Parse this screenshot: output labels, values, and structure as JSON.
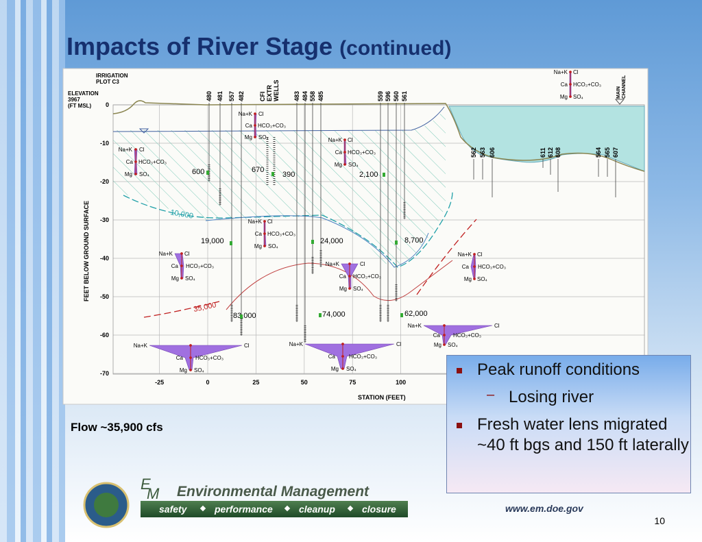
{
  "title": "Impacts of River Stage",
  "subtitle": "(continued)",
  "diagram": {
    "plot_label": [
      "IRRIGATION",
      "PLOT C3"
    ],
    "elevation_label": [
      "ELEVATION",
      "3967",
      "(FT MSL)"
    ],
    "y_axis_label": "FEET BELOW GROUND SURFACE",
    "x_axis_label": "STATION (FEET)",
    "channel_label": [
      "MAIN",
      "CHANNEL"
    ],
    "cfi_label": [
      "CFI",
      "EXTR",
      "WELLS"
    ],
    "yticks": [
      0,
      -10,
      -20,
      -30,
      -40,
      -50,
      -60,
      -70
    ],
    "xticks": [
      -25,
      0,
      25,
      50,
      75,
      100
    ],
    "wells": [
      "480",
      "481",
      "557",
      "482",
      "483",
      "484",
      "558",
      "485",
      "559",
      "596",
      "560",
      "561"
    ],
    "river_wells": [
      "562",
      "563",
      "606",
      "611",
      "612",
      "608",
      "564",
      "565",
      "607"
    ],
    "concentrations": [
      "600",
      "670",
      "390",
      "2,100",
      "19,000",
      "24,000",
      "8,700",
      "83,000",
      "74,000",
      "62,000"
    ],
    "contours": [
      "10,000",
      "35,000"
    ],
    "ions": [
      "Na+K",
      "Cl",
      "Ca",
      "HCO₃+CO₃",
      "Mg",
      "SO₄"
    ]
  },
  "flow": "Flow ~35,900 cfs",
  "bullets": [
    {
      "text": "Peak runoff conditions",
      "sub": [
        "Losing river"
      ]
    },
    {
      "text": "Fresh water lens migrated ~40 ft bgs and 150 ft laterally"
    }
  ],
  "footer": {
    "initials": [
      "E",
      "M"
    ],
    "program": "Environmental Management",
    "values": [
      "safety",
      "performance",
      "cleanup",
      "closure"
    ],
    "url": "www.em.doe.gov",
    "page": "10"
  }
}
